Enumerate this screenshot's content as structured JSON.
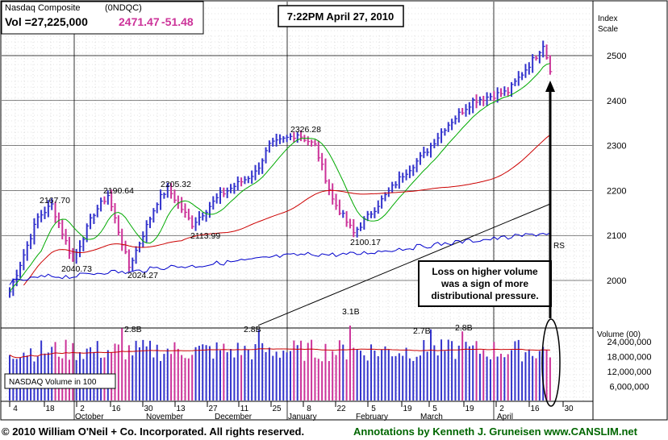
{
  "header": {
    "name": "Nasdaq Composite",
    "symbol": "(0NDQC)",
    "vol_label": "Vol =27,225,000",
    "price": "2471.47",
    "change": "-51.48",
    "timestamp": "7:22PM April 27, 2010"
  },
  "right_axis": {
    "title_line1": "Index",
    "title_line2": "Scale",
    "volume_title": "Volume (00)"
  },
  "volume_box_label": "NASDAQ Volume in 100",
  "rs_label": "RS",
  "annotation": {
    "line1": "Loss on higher volume",
    "line2": "was a sign of more",
    "line3": "distributional pressure."
  },
  "footer": {
    "copyright": "© 2010 William O'Neil + Co. Incorporated. All rights reserved.",
    "credit": "Annotations by Kenneth J. Gruneisen www.CANSLIM.net"
  },
  "colors": {
    "up_bar": "#3333cc",
    "down_bar": "#cc3399",
    "ma_short": "#00aa00",
    "ma_long": "#cc0000",
    "rs_line": "#0000cc",
    "trend_line": "#000000",
    "annotation_text": "#006600"
  },
  "chart_data": {
    "type": "ohlc",
    "price_axis": {
      "ticks": [
        2000,
        2100,
        2200,
        2300,
        2400,
        2500
      ],
      "range": [
        1930,
        2560
      ]
    },
    "volume_axis": {
      "ticks": [
        "24,000,000",
        "18,000,000",
        "12,000,000",
        "6,000,000"
      ],
      "tick_values": [
        24000000,
        18000000,
        12000000,
        6000000
      ],
      "range": [
        0,
        32000000
      ]
    },
    "x_tick_labels": [
      "4",
      "18",
      "2",
      "16",
      "30",
      "13",
      "27",
      "11",
      "25",
      "8",
      "22",
      "5",
      "19",
      "5",
      "19",
      "2",
      "16",
      "30"
    ],
    "month_labels": [
      "October",
      "November",
      "December",
      "January",
      "February",
      "March",
      "April"
    ],
    "price_annotations": [
      {
        "text": "2167.70",
        "value": 2167.7
      },
      {
        "text": "2040.73",
        "value": 2040.73
      },
      {
        "text": "2190.64",
        "value": 2190.64
      },
      {
        "text": "2024.27",
        "value": 2024.27
      },
      {
        "text": "2205.32",
        "value": 2205.32
      },
      {
        "text": "2113.99",
        "value": 2113.99
      },
      {
        "text": "2326.28",
        "value": 2326.28
      },
      {
        "text": "2100.17",
        "value": 2100.17
      }
    ],
    "volume_annotations": [
      "2.8B",
      "2.8B",
      "3.1B",
      "2.7B",
      "2.8B"
    ],
    "waypoints": [
      [
        0,
        1975
      ],
      [
        8,
        2140
      ],
      [
        12,
        2168
      ],
      [
        18,
        2045
      ],
      [
        24,
        2150
      ],
      [
        28,
        2190
      ],
      [
        34,
        2030
      ],
      [
        42,
        2175
      ],
      [
        45,
        2205
      ],
      [
        52,
        2125
      ],
      [
        60,
        2190
      ],
      [
        70,
        2240
      ],
      [
        74,
        2300
      ],
      [
        82,
        2326
      ],
      [
        87,
        2300
      ],
      [
        92,
        2180
      ],
      [
        98,
        2105
      ],
      [
        104,
        2160
      ],
      [
        112,
        2235
      ],
      [
        118,
        2280
      ],
      [
        124,
        2340
      ],
      [
        132,
        2400
      ],
      [
        142,
        2420
      ],
      [
        150,
        2500
      ],
      [
        152,
        2525
      ],
      [
        154,
        2471
      ]
    ]
  }
}
